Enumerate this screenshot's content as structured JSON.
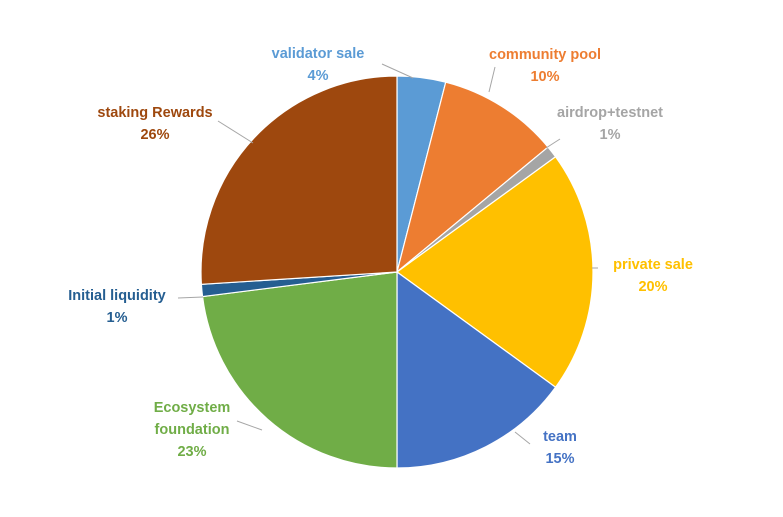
{
  "chart_data": {
    "type": "pie",
    "title": "",
    "slices": [
      {
        "name": "validator sale",
        "label": "validator sale",
        "pct_label": "4%",
        "value": 4,
        "color": "#5b9bd5"
      },
      {
        "name": "community pool",
        "label": "community pool",
        "pct_label": "10%",
        "value": 10,
        "color": "#ed7d31"
      },
      {
        "name": "airdrop+testnet",
        "label": "airdrop+testnet",
        "pct_label": "1%",
        "value": 1,
        "color": "#a5a5a5"
      },
      {
        "name": "private sale",
        "label": "private sale",
        "pct_label": "20%",
        "value": 20,
        "color": "#ffc000"
      },
      {
        "name": "team",
        "label": "team",
        "pct_label": "15%",
        "value": 15,
        "color": "#4472c4"
      },
      {
        "name": "Ecosystem foundation",
        "label": [
          "Ecosystem",
          "foundation"
        ],
        "pct_label": "23%",
        "value": 23,
        "color": "#70ad47"
      },
      {
        "name": "Initial liquidity",
        "label": "Initial liquidity",
        "pct_label": "1%",
        "value": 1,
        "color": "#255e91"
      },
      {
        "name": "staking Rewards",
        "label": "staking Rewards",
        "pct_label": "26%",
        "value": 26,
        "color": "#9e480e"
      }
    ],
    "legend": "none",
    "data_labels": "outside with leader lines"
  }
}
